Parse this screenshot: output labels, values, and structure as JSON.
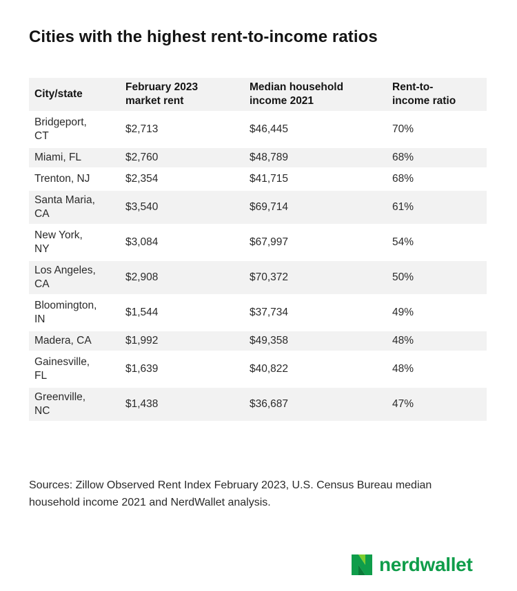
{
  "title": "Cities with the highest rent-to-income ratios",
  "chart_data": {
    "type": "table",
    "columns": [
      "City/state",
      "February 2023\nmarket rent",
      "Median household\nincome 2021",
      "Rent-to-\nincome ratio"
    ],
    "rows": [
      [
        "Bridgeport,\nCT",
        "$2,713",
        "$46,445",
        "70%"
      ],
      [
        "Miami, FL",
        "$2,760",
        "$48,789",
        "68%"
      ],
      [
        "Trenton, NJ",
        "$2,354",
        "$41,715",
        "68%"
      ],
      [
        "Santa Maria,\nCA",
        "$3,540",
        "$69,714",
        "61%"
      ],
      [
        "New York,\nNY",
        "$3,084",
        "$67,997",
        "54%"
      ],
      [
        "Los Angeles,\nCA",
        "$2,908",
        "$70,372",
        "50%"
      ],
      [
        "Bloomington,\nIN",
        "$1,544",
        "$37,734",
        "49%"
      ],
      [
        "Madera, CA",
        "$1,992",
        "$49,358",
        "48%"
      ],
      [
        "Gainesville,\nFL",
        "$1,639",
        "$40,822",
        "48%"
      ],
      [
        "Greenville,\nNC",
        "$1,438",
        "$36,687",
        "47%"
      ]
    ]
  },
  "sources": "Sources: Zillow Observed Rent Index February 2023, U.S. Census Bureau median household income 2021 and NerdWallet analysis.",
  "brand": {
    "name": "nerdwallet",
    "icon": "nerdwallet-logo-icon",
    "color": "#0f9d4a"
  }
}
